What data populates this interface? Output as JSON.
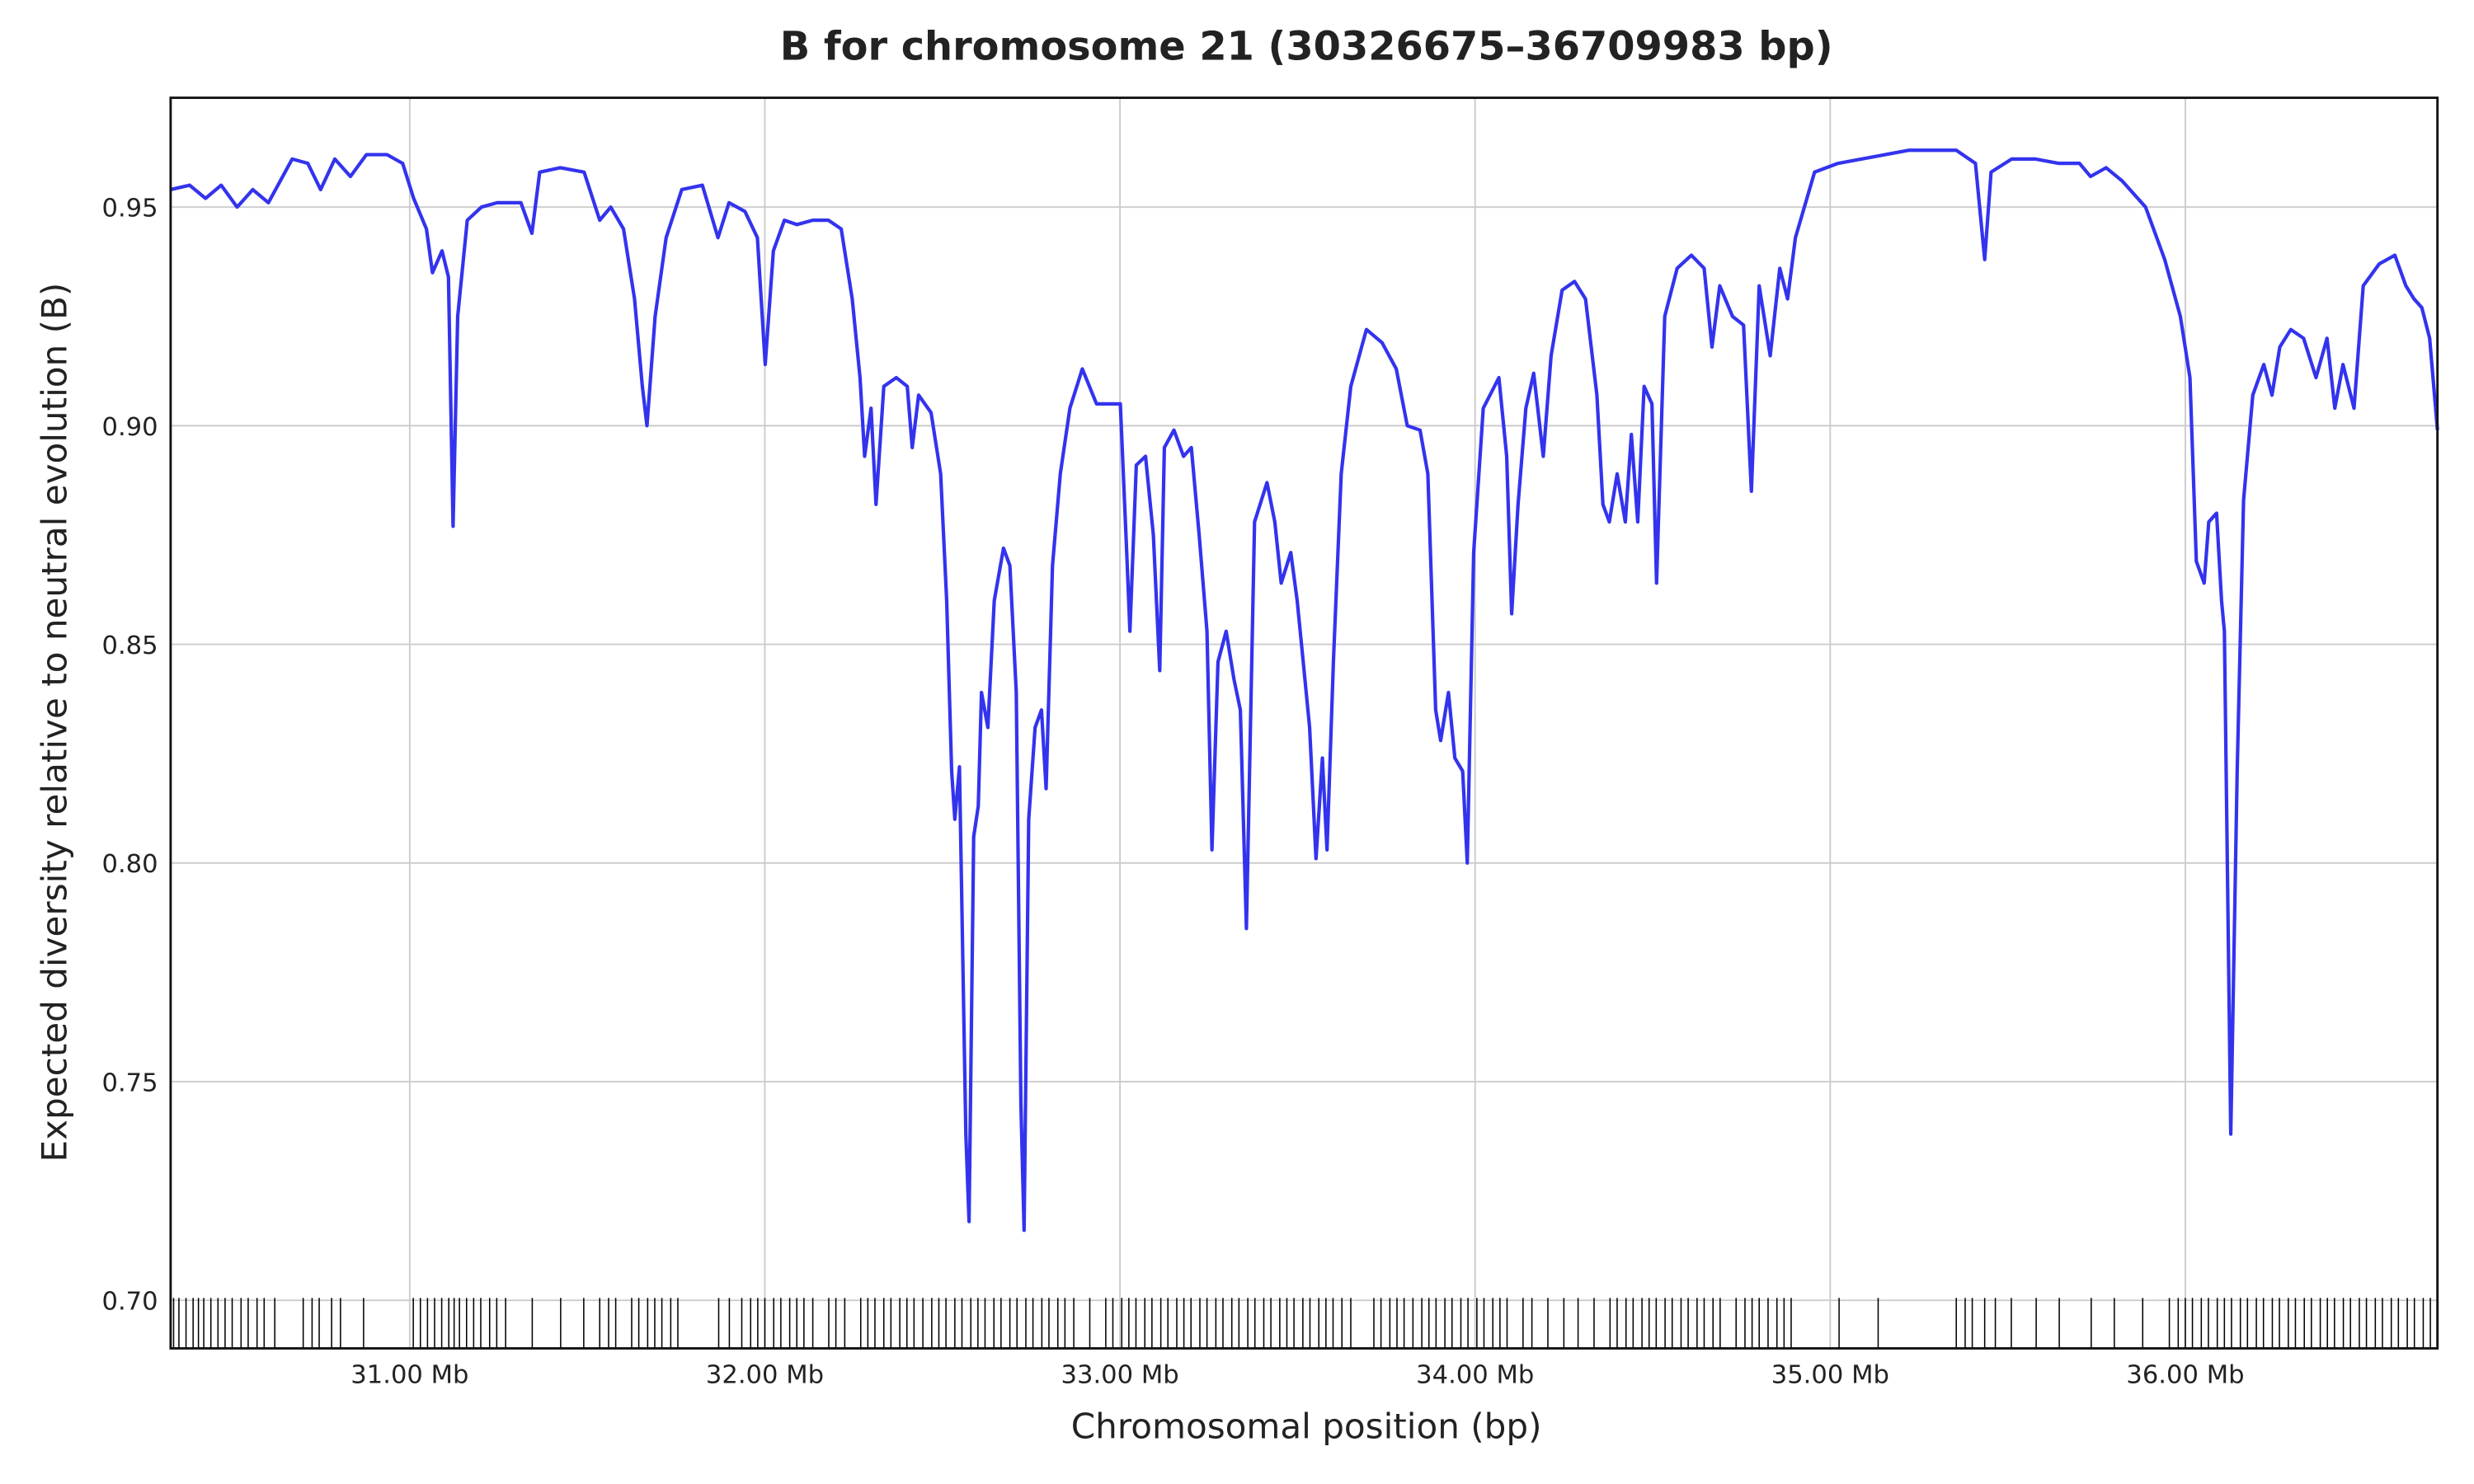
{
  "chart_data": {
    "type": "line",
    "title": "B for chromosome 21 (30326675–36709983 bp)",
    "x_label": "Chromosomal position (bp)",
    "y_label": "Expected diversity relative to neutral evolution (B)",
    "xlim": [
      30326675,
      36709983
    ],
    "ylim": [
      0.689,
      0.975
    ],
    "xticks": [
      {
        "value": 31000000,
        "label": "31.00 Mb"
      },
      {
        "value": 32000000,
        "label": "32.00 Mb"
      },
      {
        "value": 33000000,
        "label": "33.00 Mb"
      },
      {
        "value": 34000000,
        "label": "34.00 Mb"
      },
      {
        "value": 35000000,
        "label": "35.00 Mb"
      },
      {
        "value": 36000000,
        "label": "36.00 Mb"
      }
    ],
    "yticks": [
      {
        "value": 0.7,
        "label": "0.70"
      },
      0.75,
      {
        "value": 0.8,
        "label": "0.80"
      },
      0.85,
      {
        "value": 0.9,
        "label": "0.90"
      },
      0.95
    ],
    "grid": true,
    "x": [
      30326675,
      30380000,
      30425000,
      30469000,
      30514000,
      30558000,
      30602000,
      30669000,
      30713000,
      30749000,
      30789000,
      30833000,
      30878000,
      30936000,
      30980000,
      31011000,
      31047000,
      31064000,
      31091000,
      31109000,
      31122000,
      31135000,
      31162000,
      31202000,
      31246000,
      31313000,
      31344000,
      31366000,
      31424000,
      31491000,
      31535000,
      31566000,
      31602000,
      31633000,
      31655000,
      31668000,
      31691000,
      31722000,
      31766000,
      31824000,
      31868000,
      31899000,
      31944000,
      31979000,
      32001000,
      32024000,
      32055000,
      32090000,
      32135000,
      32179000,
      32215000,
      32246000,
      32268000,
      32281000,
      32299000,
      32313000,
      32335000,
      32370000,
      32401000,
      32415000,
      32433000,
      32468000,
      32495000,
      32512000,
      32526000,
      32535000,
      32548000,
      32566000,
      32575000,
      32588000,
      32601000,
      32610000,
      32628000,
      32646000,
      32672000,
      32690000,
      32708000,
      32721000,
      32730000,
      32743000,
      32761000,
      32779000,
      32792000,
      32810000,
      32832000,
      32859000,
      32894000,
      32934000,
      32970000,
      33001000,
      33019000,
      33028000,
      33046000,
      33072000,
      33094000,
      33112000,
      33125000,
      33152000,
      33179000,
      33201000,
      33223000,
      33245000,
      33259000,
      33276000,
      33299000,
      33321000,
      33339000,
      33356000,
      33379000,
      33414000,
      33436000,
      33454000,
      33481000,
      33499000,
      33516000,
      33534000,
      33552000,
      33570000,
      33583000,
      33601000,
      33623000,
      33650000,
      33694000,
      33738000,
      33778000,
      33809000,
      33845000,
      33867000,
      33889000,
      33903000,
      33925000,
      33943000,
      33965000,
      33978000,
      33996000,
      34023000,
      34067000,
      34089000,
      34103000,
      34121000,
      34143000,
      34165000,
      34192000,
      34214000,
      34245000,
      34280000,
      34311000,
      34343000,
      34360000,
      34378000,
      34400000,
      34423000,
      34440000,
      34458000,
      34476000,
      34498000,
      34511000,
      34534000,
      34569000,
      34609000,
      34645000,
      34667000,
      34689000,
      34725000,
      34756000,
      34778000,
      34800000,
      34831000,
      34858000,
      34880000,
      34902000,
      34956000,
      35022000,
      35089000,
      35155000,
      35222000,
      35355000,
      35409000,
      35435000,
      35453000,
      35511000,
      35577000,
      35644000,
      35702000,
      35733000,
      35777000,
      35822000,
      35888000,
      35942000,
      35986000,
      36013000,
      36031000,
      36053000,
      36066000,
      36088000,
      36102000,
      36110000,
      36128000,
      36146000,
      36164000,
      36190000,
      36221000,
      36244000,
      36266000,
      36297000,
      36333000,
      36368000,
      36399000,
      36421000,
      36444000,
      36475000,
      36501000,
      36546000,
      36590000,
      36621000,
      36644000,
      36666000,
      36688000,
      36709983
    ],
    "series": [
      {
        "color": "#3333ee",
        "values": [
          0.954,
          0.955,
          0.952,
          0.955,
          0.95,
          0.954,
          0.951,
          0.961,
          0.96,
          0.954,
          0.961,
          0.957,
          0.962,
          0.962,
          0.96,
          0.952,
          0.945,
          0.935,
          0.94,
          0.934,
          0.877,
          0.925,
          0.947,
          0.95,
          0.951,
          0.951,
          0.944,
          0.958,
          0.959,
          0.958,
          0.947,
          0.95,
          0.945,
          0.929,
          0.909,
          0.9,
          0.925,
          0.943,
          0.954,
          0.955,
          0.943,
          0.951,
          0.949,
          0.943,
          0.914,
          0.94,
          0.947,
          0.946,
          0.947,
          0.947,
          0.945,
          0.929,
          0.911,
          0.893,
          0.904,
          0.882,
          0.909,
          0.911,
          0.909,
          0.895,
          0.907,
          0.903,
          0.889,
          0.86,
          0.821,
          0.81,
          0.822,
          0.738,
          0.718,
          0.806,
          0.813,
          0.839,
          0.831,
          0.86,
          0.872,
          0.868,
          0.839,
          0.745,
          0.716,
          0.81,
          0.831,
          0.835,
          0.817,
          0.868,
          0.889,
          0.904,
          0.913,
          0.905,
          0.905,
          0.905,
          0.871,
          0.853,
          0.891,
          0.893,
          0.875,
          0.844,
          0.895,
          0.899,
          0.893,
          0.895,
          0.875,
          0.853,
          0.803,
          0.846,
          0.853,
          0.842,
          0.835,
          0.785,
          0.878,
          0.887,
          0.878,
          0.864,
          0.871,
          0.86,
          0.846,
          0.831,
          0.801,
          0.824,
          0.803,
          0.846,
          0.889,
          0.909,
          0.922,
          0.919,
          0.913,
          0.9,
          0.899,
          0.889,
          0.835,
          0.828,
          0.839,
          0.824,
          0.821,
          0.8,
          0.871,
          0.904,
          0.911,
          0.893,
          0.857,
          0.882,
          0.904,
          0.912,
          0.893,
          0.916,
          0.931,
          0.933,
          0.929,
          0.907,
          0.882,
          0.878,
          0.889,
          0.878,
          0.898,
          0.878,
          0.909,
          0.905,
          0.864,
          0.925,
          0.936,
          0.939,
          0.936,
          0.918,
          0.932,
          0.925,
          0.923,
          0.885,
          0.932,
          0.916,
          0.936,
          0.929,
          0.943,
          0.958,
          0.96,
          0.961,
          0.962,
          0.963,
          0.963,
          0.96,
          0.938,
          0.958,
          0.961,
          0.961,
          0.96,
          0.96,
          0.957,
          0.959,
          0.956,
          0.95,
          0.938,
          0.925,
          0.911,
          0.869,
          0.864,
          0.878,
          0.88,
          0.86,
          0.853,
          0.738,
          0.821,
          0.883,
          0.907,
          0.914,
          0.907,
          0.918,
          0.922,
          0.92,
          0.911,
          0.92,
          0.904,
          0.914,
          0.904,
          0.932,
          0.937,
          0.939,
          0.932,
          0.929,
          0.927,
          0.92,
          0.899
        ]
      }
    ],
    "rug_color": "#000000",
    "rug_positions": [
      30335000,
      30350000,
      30370000,
      30390000,
      30405000,
      30420000,
      30440000,
      30460000,
      30480000,
      30500000,
      30525000,
      30545000,
      30570000,
      30590000,
      30620000,
      30700000,
      30725000,
      30745000,
      30780000,
      30805000,
      30870000,
      31010000,
      31030000,
      31050000,
      31070000,
      31090000,
      31110000,
      31125000,
      31140000,
      31160000,
      31180000,
      31200000,
      31225000,
      31245000,
      31270000,
      31345000,
      31425000,
      31490000,
      31535000,
      31560000,
      31580000,
      31625000,
      31645000,
      31670000,
      31690000,
      31710000,
      31735000,
      31755000,
      31870000,
      31900000,
      31935000,
      31960000,
      31980000,
      32000000,
      32025000,
      32045000,
      32070000,
      32090000,
      32110000,
      32135000,
      32180000,
      32200000,
      32225000,
      32270000,
      32290000,
      32310000,
      32335000,
      32355000,
      32380000,
      32400000,
      32420000,
      32445000,
      32470000,
      32490000,
      32510000,
      32535000,
      32555000,
      32580000,
      32600000,
      32620000,
      32645000,
      32665000,
      32690000,
      32710000,
      32735000,
      32755000,
      32780000,
      32800000,
      32825000,
      32845000,
      32870000,
      32915000,
      32960000,
      32980000,
      33005000,
      33025000,
      33045000,
      33070000,
      33090000,
      33115000,
      33135000,
      33160000,
      33180000,
      33200000,
      33225000,
      33245000,
      33270000,
      33290000,
      33315000,
      33335000,
      33360000,
      33380000,
      33405000,
      33425000,
      33450000,
      33470000,
      33490000,
      33515000,
      33535000,
      33560000,
      33580000,
      33600000,
      33625000,
      33650000,
      33715000,
      33735000,
      33760000,
      33780000,
      33800000,
      33825000,
      33850000,
      33870000,
      33890000,
      33915000,
      33935000,
      33960000,
      33980000,
      34005000,
      34025000,
      34050000,
      34070000,
      34090000,
      34135000,
      34160000,
      34205000,
      34250000,
      34290000,
      34335000,
      34380000,
      34400000,
      34425000,
      34445000,
      34470000,
      34490000,
      34510000,
      34535000,
      34555000,
      34580000,
      34600000,
      34625000,
      34645000,
      34670000,
      34690000,
      34735000,
      34760000,
      34780000,
      34800000,
      34825000,
      34850000,
      34870000,
      34890000,
      35025000,
      35135000,
      35355000,
      35380000,
      35400000,
      35435000,
      35465000,
      35510000,
      35580000,
      35645000,
      35735000,
      35800000,
      35880000,
      35955000,
      35980000,
      36000000,
      36020000,
      36045000,
      36065000,
      36090000,
      36110000,
      36130000,
      36155000,
      36175000,
      36200000,
      36220000,
      36245000,
      36265000,
      36290000,
      36310000,
      36335000,
      36355000,
      36380000,
      36400000,
      36420000,
      36445000,
      36465000,
      36490000,
      36510000,
      36535000,
      36555000,
      36580000,
      36600000,
      36625000,
      36645000,
      36670000,
      36690000
    ]
  }
}
